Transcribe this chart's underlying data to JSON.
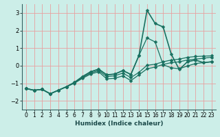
{
  "title": "",
  "xlabel": "Humidex (Indice chaleur)",
  "bg_color": "#cceee8",
  "grid_color": "#e8a0a0",
  "line_color": "#1a7060",
  "xlim": [
    -0.5,
    23.5
  ],
  "ylim": [
    -2.5,
    3.5
  ],
  "xticks": [
    0,
    1,
    2,
    3,
    4,
    5,
    6,
    7,
    8,
    9,
    10,
    11,
    12,
    13,
    14,
    15,
    16,
    17,
    18,
    19,
    20,
    21,
    22,
    23
  ],
  "yticks": [
    -2,
    -1,
    0,
    1,
    2,
    3
  ],
  "series": [
    [
      0,
      1,
      2,
      3,
      4,
      5,
      6,
      7,
      8,
      9,
      10,
      11,
      12,
      13,
      14,
      15,
      16,
      17,
      18,
      19,
      20,
      21,
      22,
      23
    ],
    [
      -1.3,
      -1.4,
      -1.35,
      -1.6,
      -1.4,
      -1.2,
      -1.0,
      -0.72,
      -0.48,
      -0.35,
      -0.75,
      -0.72,
      -0.58,
      -0.85,
      -0.52,
      -0.18,
      -0.08,
      0.07,
      0.17,
      0.22,
      0.32,
      0.37,
      0.42,
      0.48
    ],
    [
      -1.3,
      -1.4,
      -1.35,
      -1.6,
      -1.4,
      -1.2,
      -0.98,
      -0.68,
      -0.42,
      -0.28,
      -0.62,
      -0.58,
      -0.42,
      -0.68,
      -0.38,
      0.02,
      0.08,
      0.22,
      0.32,
      0.37,
      0.47,
      0.52,
      0.54,
      0.56
    ],
    [
      -1.3,
      -1.4,
      -1.35,
      -1.6,
      -1.4,
      -1.2,
      -0.95,
      -0.62,
      -0.35,
      -0.2,
      -0.52,
      -0.48,
      -0.28,
      -0.5,
      0.58,
      1.58,
      1.35,
      0.05,
      -0.12,
      -0.18,
      -0.02,
      0.12,
      0.17,
      0.22
    ],
    [
      -1.3,
      -1.4,
      -1.35,
      -1.6,
      -1.4,
      -1.2,
      -0.95,
      -0.62,
      -0.35,
      -0.2,
      -0.52,
      -0.48,
      -0.28,
      -0.5,
      0.58,
      3.15,
      2.4,
      2.2,
      0.65,
      -0.22,
      0.22,
      0.32,
      0.17,
      0.22
    ]
  ]
}
